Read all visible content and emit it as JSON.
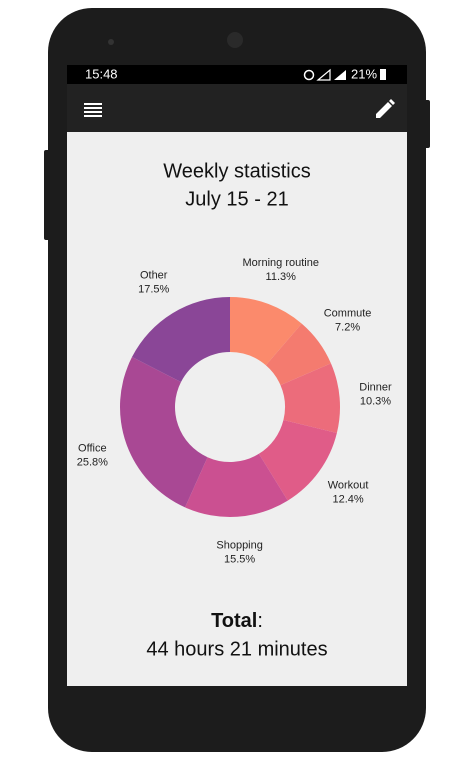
{
  "status_bar": {
    "time": "15:48",
    "battery": "21%"
  },
  "header": {
    "title": "Weekly statistics",
    "subtitle": "July 15 - 21"
  },
  "chart_data": {
    "type": "donut",
    "categories": [
      "Morning routine",
      "Commute",
      "Dinner",
      "Workout",
      "Shopping",
      "Office",
      "Other"
    ],
    "values": [
      11.3,
      7.2,
      10.3,
      12.4,
      15.5,
      25.8,
      17.5
    ],
    "value_labels": [
      "11.3%",
      "7.2%",
      "10.3%",
      "12.4%",
      "15.5%",
      "25.8%",
      "17.5%"
    ],
    "colors": [
      "#fb8a6c",
      "#f47b6f",
      "#ec6c7b",
      "#e05c88",
      "#cb5091",
      "#a94894",
      "#8a4697"
    ]
  },
  "total": {
    "label": "Total",
    "separator": ":",
    "value": "44 hours 21 minutes"
  }
}
